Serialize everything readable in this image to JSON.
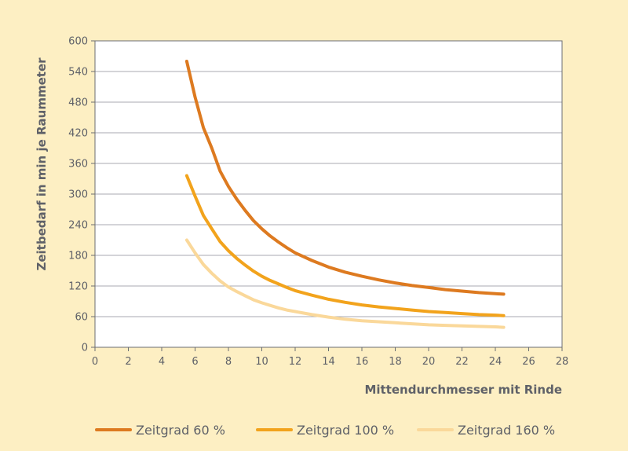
{
  "chart_data": {
    "type": "line",
    "title": "",
    "xlabel": "Mittendurchmesser mit Rinde",
    "ylabel": "Zeitbedarf in min je Raummeter",
    "xlim": [
      0,
      28
    ],
    "ylim": [
      0,
      600
    ],
    "x_ticks": [
      0,
      2,
      4,
      6,
      8,
      10,
      12,
      14,
      16,
      18,
      20,
      22,
      24,
      26,
      28
    ],
    "y_ticks": [
      0,
      60,
      120,
      180,
      240,
      300,
      360,
      420,
      480,
      540,
      600
    ],
    "grid": "horizontal",
    "legend_position": "bottom",
    "plot_background": "#ffffff",
    "page_background": "#fdefc3",
    "series": [
      {
        "name": "Zeitgrad 60 %",
        "color": "#dd7a20",
        "x": [
          5.5,
          6,
          6.5,
          7,
          7.5,
          8,
          8.5,
          9,
          9.5,
          10,
          10.5,
          11,
          11.5,
          12,
          13,
          14,
          15,
          16,
          17,
          18,
          19,
          20,
          21,
          22,
          23,
          24,
          24.5
        ],
        "y": [
          560,
          490,
          430,
          390,
          345,
          315,
          290,
          268,
          248,
          232,
          218,
          206,
          195,
          185,
          170,
          157,
          147,
          139,
          132,
          126,
          121,
          117,
          113,
          110,
          107,
          105,
          104
        ]
      },
      {
        "name": "Zeitgrad 100 %",
        "color": "#f2a31c",
        "x": [
          5.5,
          6,
          6.5,
          7,
          7.5,
          8,
          8.5,
          9,
          9.5,
          10,
          10.5,
          11,
          11.5,
          12,
          13,
          14,
          15,
          16,
          17,
          18,
          19,
          20,
          21,
          22,
          23,
          24,
          24.5
        ],
        "y": [
          336,
          296,
          258,
          232,
          207,
          189,
          174,
          161,
          149,
          139,
          131,
          124,
          117,
          111,
          102,
          94,
          88,
          83,
          79,
          76,
          73,
          70,
          68,
          66,
          64,
          63,
          62
        ]
      },
      {
        "name": "Zeitgrad 160 %",
        "color": "#fad89a",
        "x": [
          5.5,
          6,
          6.5,
          7,
          7.5,
          8,
          8.5,
          9,
          9.5,
          10,
          10.5,
          11,
          11.5,
          12,
          13,
          14,
          15,
          16,
          17,
          18,
          19,
          20,
          21,
          22,
          23,
          24,
          24.5
        ],
        "y": [
          210,
          185,
          162,
          145,
          130,
          118,
          109,
          101,
          93,
          87,
          82,
          77,
          73,
          70,
          64,
          59,
          55,
          52,
          50,
          48,
          46,
          44,
          43,
          42,
          41,
          40,
          39
        ]
      }
    ]
  }
}
